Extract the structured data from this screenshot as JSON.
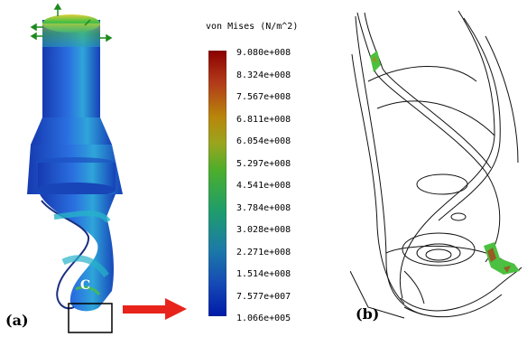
{
  "legend": {
    "title": "von Mises (N/m^2)",
    "ticks": [
      "9.080e+008",
      "8.324e+008",
      "7.567e+008",
      "6.811e+008",
      "6.054e+008",
      "5.297e+008",
      "4.541e+008",
      "3.784e+008",
      "3.028e+008",
      "2.271e+008",
      "1.514e+008",
      "7.577e+007",
      "1.066e+005"
    ],
    "colors": [
      "#8b0000",
      "#b23a1a",
      "#b8860b",
      "#9aa51e",
      "#4cae2b",
      "#2aa63b",
      "#1f9e6a",
      "#1c8f8c",
      "#1b7aa8",
      "#1961b5",
      "#1549b5",
      "#0f33b0",
      "#001aa8"
    ]
  },
  "labels": {
    "panel_a": "(a)",
    "panel_b": "(b)",
    "callout": "C"
  },
  "colors": {
    "arrow": "#e8231b",
    "tool_body": "#1a48c8",
    "tool_highlight": "#27b2c9",
    "stress_green": "#4cc040"
  }
}
